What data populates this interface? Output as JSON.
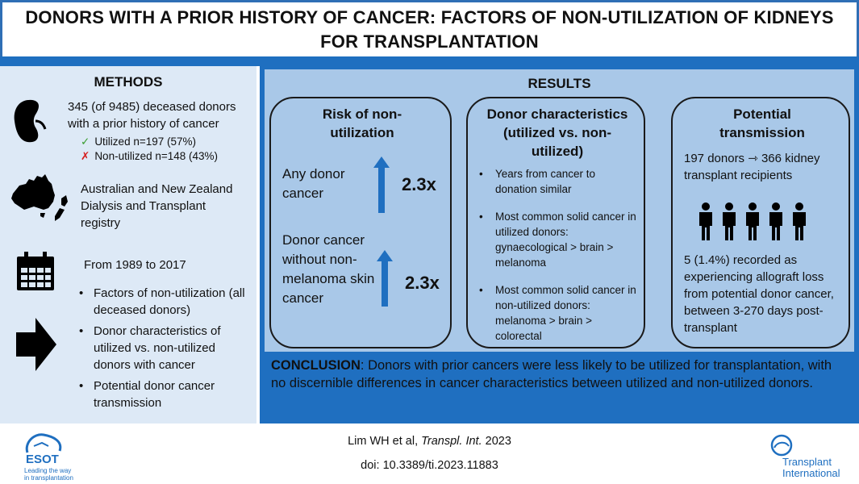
{
  "header": {
    "title": "DONORS WITH A PRIOR HISTORY OF CANCER: FACTORS OF NON-UTILIZATION OF KIDNEYS FOR TRANSPLANTATION"
  },
  "methods": {
    "heading": "METHODS",
    "donors_line": "345 (of 9485) deceased donors with a prior history of cancer",
    "utilized": "Utilized n=197 (57%)",
    "non_utilized": "Non-utilized n=148 (43%)",
    "registry": "Australian and New Zealand Dialysis and Transplant registry",
    "period": "From 1989 to 2017",
    "outcomes": [
      "Factors of non-utilization (all deceased donors)",
      "Donor characteristics of utilized vs. non-utilized donors with cancer",
      "Potential donor cancer transmission"
    ],
    "icons": [
      "kidney-icon",
      "australia-nz-map-icon",
      "calendar-icon",
      "arrow-right-icon"
    ]
  },
  "results": {
    "heading": "RESULTS",
    "risk": {
      "title": "Risk of non-utilization",
      "items": [
        {
          "label": "Any donor cancer",
          "value": "2.3x"
        },
        {
          "label": "Donor cancer without non-melanoma skin cancer",
          "value": "2.3x"
        }
      ]
    },
    "characteristics": {
      "title": "Donor characteristics (utilized vs. non-utilized)",
      "items": [
        "Years from cancer to donation similar",
        "Most common solid cancer in utilized donors: gynaecological > brain > melanoma",
        "Most common solid cancer in non-utilized donors: melanoma > brain > colorectal"
      ]
    },
    "transmission": {
      "title": "Potential transmission",
      "flow": "197 donors ⇾ 366 kidney transplant recipients",
      "recorded": "5 (1.4%) recorded as experiencing allograft loss from potential donor cancer, between 3-270 days post-transplant"
    }
  },
  "conclusion": {
    "label": "CONCLUSION",
    "text": ": Donors with prior cancers were less likely to be utilized for transplantation, with no discernible differences in cancer characteristics between utilized and non-utilized donors."
  },
  "footer": {
    "citation_authors": "Lim WH et al, ",
    "citation_journal": "Transpl. Int.",
    "citation_year": " 2023",
    "doi": "doi: 10.3389/ti.2023.11883",
    "left_logo": {
      "name": "ESOT",
      "tagline_1": "Leading the way",
      "tagline_2": "in transplantation"
    },
    "right_logo": {
      "line_1": "Transplant",
      "line_2": "International"
    }
  },
  "colors": {
    "accent_blue": "#1f6fc0",
    "results_bg": "#a9c8e8",
    "methods_bg": "#dde9f6",
    "check": "#3a9d2f",
    "cross": "#d61f1f"
  }
}
